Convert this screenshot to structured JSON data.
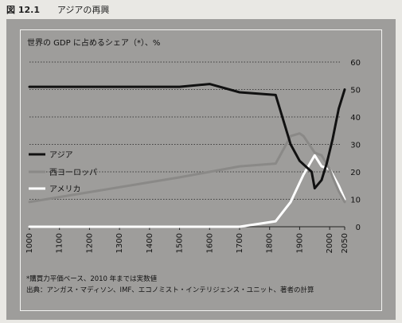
{
  "figure": {
    "number": "図 12.1",
    "title": "アジアの再興"
  },
  "notes": {
    "footnote": "*購買力平価ベース、2010 年までは実数値",
    "source": "出典：アンガス・マディソン、IMF、エコノミスト・インテリジェンス・ユニット、著者の計算"
  },
  "colors": {
    "background": "#9e9d9b",
    "asia": "#111111",
    "west_europe": "#8a8987",
    "america": "#ffffff",
    "grid": "#222222",
    "text": "#111111"
  },
  "chart_data": {
    "type": "line",
    "title": "世界の GDP に占めるシェア（*）、%",
    "xlabel": "",
    "ylabel": "",
    "xlim": [
      1000,
      2050
    ],
    "ylim": [
      0,
      60
    ],
    "x_ticks": [
      1000,
      1100,
      1200,
      1300,
      1400,
      1500,
      1600,
      1700,
      1800,
      1900,
      2000,
      2050
    ],
    "y_ticks": [
      0,
      10,
      20,
      30,
      40,
      50,
      60
    ],
    "grid": true,
    "legend_position": "left-middle",
    "series": [
      {
        "name": "アジア",
        "color": "#111111",
        "points": [
          [
            1000,
            51
          ],
          [
            1500,
            51
          ],
          [
            1600,
            52
          ],
          [
            1700,
            49
          ],
          [
            1820,
            48
          ],
          [
            1870,
            30
          ],
          [
            1900,
            24
          ],
          [
            1940,
            20
          ],
          [
            1950,
            14
          ],
          [
            1973,
            17
          ],
          [
            1990,
            23
          ],
          [
            2010,
            32
          ],
          [
            2030,
            43
          ],
          [
            2050,
            50
          ]
        ]
      },
      {
        "name": "西ヨーロッパ",
        "color": "#8a8987",
        "points": [
          [
            1000,
            9
          ],
          [
            1500,
            18
          ],
          [
            1600,
            20
          ],
          [
            1700,
            22
          ],
          [
            1820,
            23
          ],
          [
            1870,
            33
          ],
          [
            1900,
            34
          ],
          [
            1913,
            33
          ],
          [
            1950,
            27
          ],
          [
            1973,
            26
          ],
          [
            2000,
            21
          ],
          [
            2010,
            18
          ],
          [
            2030,
            13
          ],
          [
            2050,
            9
          ]
        ]
      },
      {
        "name": "アメリカ",
        "color": "#ffffff",
        "points": [
          [
            1000,
            0
          ],
          [
            1700,
            0
          ],
          [
            1820,
            2
          ],
          [
            1870,
            9
          ],
          [
            1900,
            16
          ],
          [
            1913,
            19
          ],
          [
            1950,
            26
          ],
          [
            1973,
            22
          ],
          [
            2000,
            21
          ],
          [
            2010,
            19
          ],
          [
            2030,
            15
          ],
          [
            2050,
            10
          ]
        ]
      }
    ]
  }
}
